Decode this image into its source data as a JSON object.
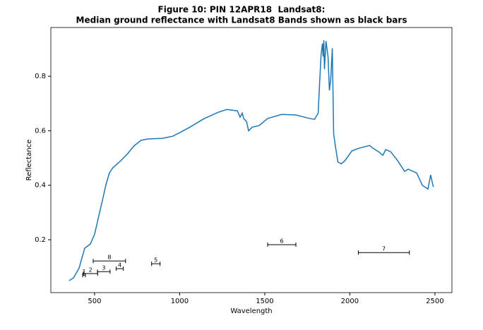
{
  "chart_data": {
    "type": "line",
    "title": [
      "Figure 10: PIN 12APR18  Landsat8:",
      "Median ground reflectance with Landsat8 Bands shown as black bars"
    ],
    "x_label": "Wavelength",
    "y_label": "Reflectance",
    "xlim": [
      243,
      2600
    ],
    "ylim": [
      0.006,
      0.979
    ],
    "xticks": [
      500,
      1000,
      1500,
      2000,
      2500
    ],
    "yticks": [
      0.2,
      0.4,
      0.6,
      0.8
    ],
    "series": [
      {
        "color": "#1f77b4",
        "x": [
          351,
          376,
          409,
          442,
          475,
          500,
          525,
          550,
          566,
          587,
          607,
          649,
          690,
          731,
          773,
          814,
          897,
          959,
          1000,
          1062,
          1145,
          1227,
          1277,
          1339,
          1355,
          1368,
          1376,
          1393,
          1405,
          1426,
          1467,
          1517,
          1599,
          1682,
          1764,
          1793,
          1814,
          1822,
          1831,
          1839,
          1843,
          1847,
          1851,
          1860,
          1872,
          1880,
          1888,
          1897,
          1905,
          1917,
          1930,
          1950,
          1971,
          2012,
          2054,
          2116,
          2136,
          2169,
          2194,
          2211,
          2240,
          2281,
          2322,
          2343,
          2393,
          2426,
          2459,
          2475,
          2488,
          2492
        ],
        "values": [
          0.05,
          0.06,
          0.096,
          0.169,
          0.184,
          0.22,
          0.288,
          0.355,
          0.4,
          0.445,
          0.464,
          0.487,
          0.513,
          0.544,
          0.565,
          0.57,
          0.572,
          0.58,
          0.593,
          0.614,
          0.645,
          0.668,
          0.678,
          0.673,
          0.65,
          0.665,
          0.645,
          0.634,
          0.6,
          0.613,
          0.619,
          0.645,
          0.66,
          0.658,
          0.645,
          0.642,
          0.665,
          0.77,
          0.878,
          0.92,
          0.872,
          0.932,
          0.826,
          0.929,
          0.872,
          0.748,
          0.79,
          0.903,
          0.588,
          0.536,
          0.485,
          0.479,
          0.49,
          0.526,
          0.536,
          0.546,
          0.536,
          0.523,
          0.51,
          0.531,
          0.523,
          0.49,
          0.451,
          0.459,
          0.445,
          0.4,
          0.386,
          0.438,
          0.4,
          0.394
        ]
      }
    ],
    "bands": [
      {
        "name": "1",
        "x": 438,
        "err": 8,
        "y": 0.07
      },
      {
        "name": "2",
        "x": 476,
        "err": 42,
        "y": 0.076
      },
      {
        "name": "3",
        "x": 554,
        "err": 37,
        "y": 0.083
      },
      {
        "name": "4",
        "x": 648,
        "err": 21,
        "y": 0.094
      },
      {
        "name": "5",
        "x": 860,
        "err": 25,
        "y": 0.112
      },
      {
        "name": "6",
        "x": 1600,
        "err": 83,
        "y": 0.182
      },
      {
        "name": "7",
        "x": 2200,
        "err": 150,
        "y": 0.153
      },
      {
        "name": "8",
        "x": 587,
        "err": 95,
        "y": 0.122
      }
    ],
    "band_color": "#000000"
  }
}
